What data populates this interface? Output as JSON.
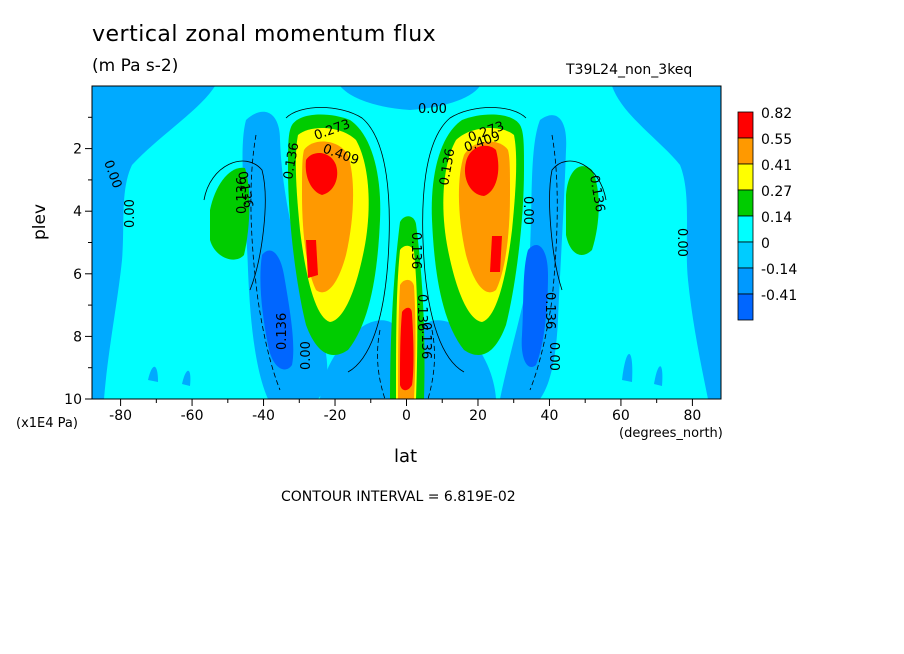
{
  "chart_data": {
    "type": "contour",
    "title": "vertical zonal momentum flux",
    "units": "(m Pa s-2)",
    "run_label": "T39L24_non_3keq",
    "xlabel": "lat",
    "xunit": "(degrees_north)",
    "ylabel": "plev",
    "yunit": "(x1E4 Pa)",
    "contour_interval_text": "CONTOUR INTERVAL = 6.819E-02",
    "xlim": [
      -88,
      88
    ],
    "ylim": [
      10,
      0
    ],
    "x_ticks": [
      -80,
      -60,
      -40,
      -20,
      0,
      20,
      40,
      60,
      80
    ],
    "y_ticks": [
      2,
      4,
      6,
      8,
      10
    ],
    "colorbar": {
      "levels": [
        "0.82",
        "0.55",
        "0.41",
        "0.27",
        "0.14",
        "0",
        "-0.14",
        "-0.41"
      ],
      "colors": [
        "#ff0000",
        "#ff9900",
        "#ffff00",
        "#00cc00",
        "#00ffff",
        "#00ccff",
        "#0099ff",
        "#0066ff"
      ]
    },
    "colors": {
      "background": "#00ffff",
      "neg1": "#00aaff",
      "neg2": "#0066ff",
      "pos1": "#00cc00",
      "pos2": "#ffff00",
      "pos3": "#ff9900",
      "pos4": "#ff0000"
    },
    "contour_labels": [
      "0.00",
      "0.00",
      "0.00",
      "0.00",
      "0.00",
      "0.136",
      "0.136",
      "0.136",
      "0.136",
      "0.136",
      "0.136",
      "0.136",
      "0.136",
      "0.273",
      "0.273",
      "0.409",
      "0.409",
      "0.136",
      "0.136",
      "0.00",
      "0.00"
    ]
  }
}
